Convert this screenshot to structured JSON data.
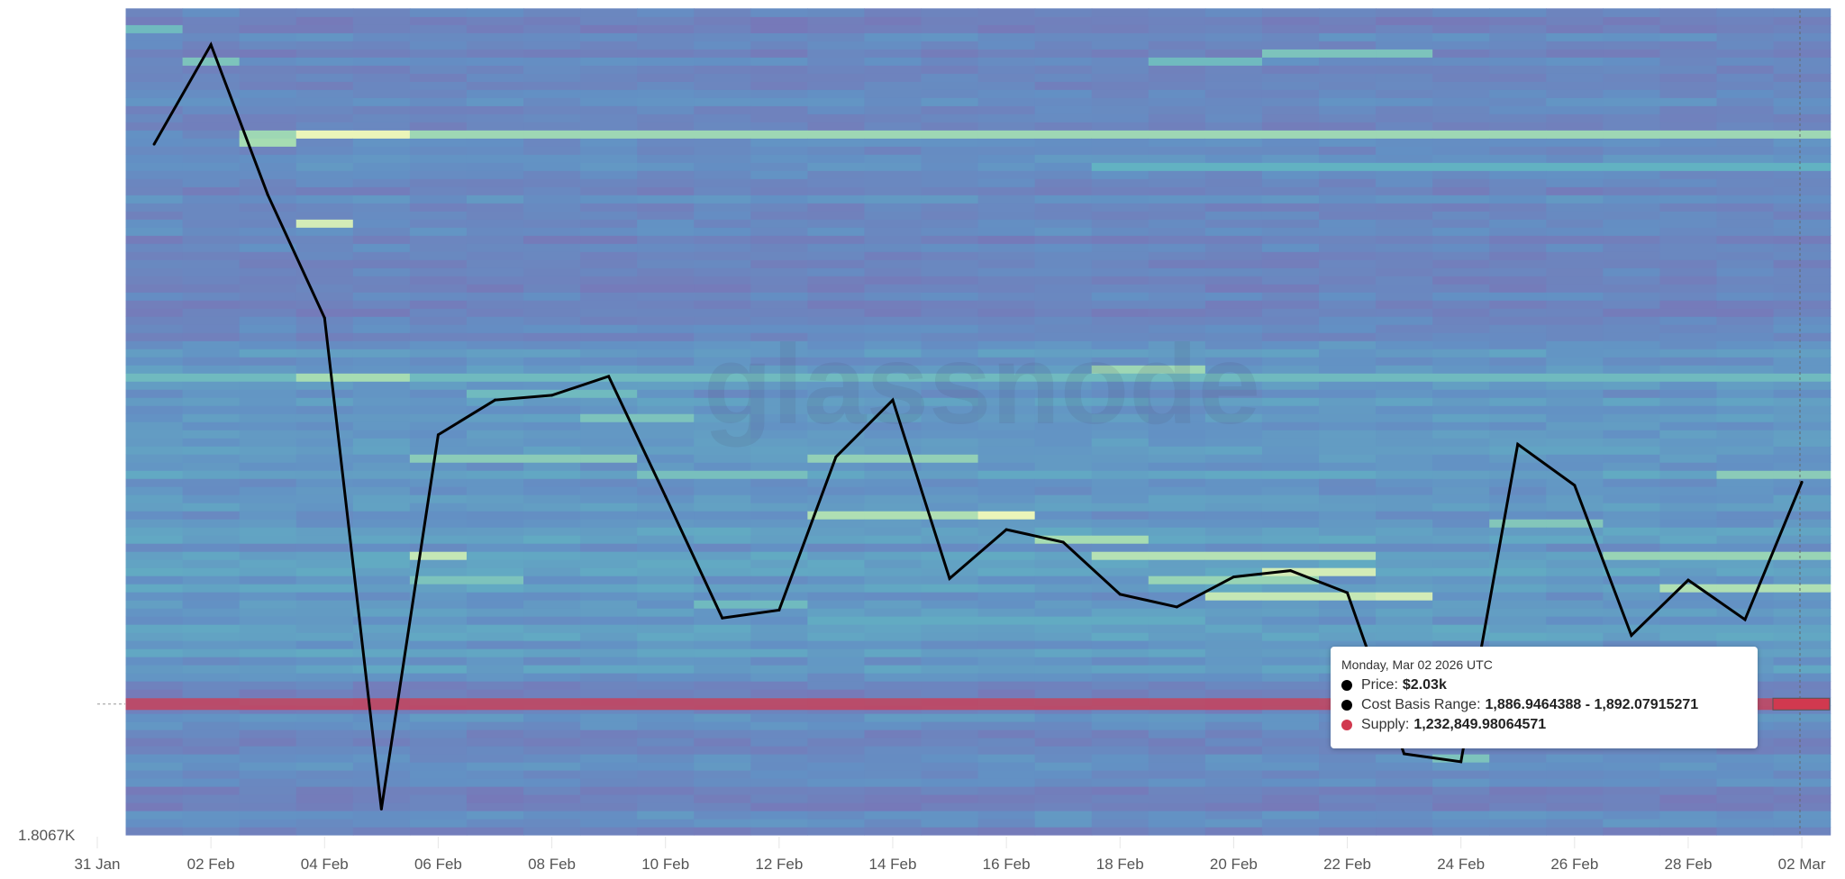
{
  "chart_data": {
    "type": "heatmap",
    "title": "",
    "xlabel": "",
    "ylabel": "",
    "y_min_label": "1.8067K",
    "ylim": [
      1806.7,
      2329
    ],
    "band_size": 5.13,
    "x_ticks": [
      "31 Jan",
      "02 Feb",
      "04 Feb",
      "06 Feb",
      "08 Feb",
      "10 Feb",
      "12 Feb",
      "14 Feb",
      "16 Feb",
      "18 Feb",
      "20 Feb",
      "22 Feb",
      "24 Feb",
      "26 Feb",
      "28 Feb",
      "02 Mar"
    ],
    "x_range": [
      "2026-01-31",
      "2026-03-02"
    ],
    "grid": false,
    "watermark": "glassnode",
    "price_series": {
      "name": "Price",
      "color": "#000000",
      "x": [
        "2026-02-01",
        "2026-02-02",
        "2026-02-03",
        "2026-02-04",
        "2026-02-05",
        "2026-02-06",
        "2026-02-07",
        "2026-02-08",
        "2026-02-09",
        "2026-02-10",
        "2026-02-11",
        "2026-02-12",
        "2026-02-13",
        "2026-02-14",
        "2026-02-15",
        "2026-02-16",
        "2026-02-17",
        "2026-02-18",
        "2026-02-19",
        "2026-02-20",
        "2026-02-21",
        "2026-02-22",
        "2026-02-23",
        "2026-02-24",
        "2026-02-25",
        "2026-02-26",
        "2026-02-27",
        "2026-02-28",
        "2026-03-01",
        "2026-03-02"
      ],
      "values": [
        2244,
        2307,
        2212,
        2134,
        1823,
        2060,
        2082,
        2085,
        2097,
        2021,
        1944,
        1949,
        2046,
        2082,
        1969,
        2000,
        1992,
        1959,
        1951,
        1970,
        1974,
        1960,
        1858,
        1853,
        2054,
        2028,
        1933,
        1968,
        1943,
        2030
      ]
    },
    "highlighted_band": {
      "from": 1886.9464388,
      "to": 1892.07915271,
      "color": "#d1394f"
    },
    "density_colors": [
      "#7b74b6",
      "#6390c4",
      "#62b2c2",
      "#a6dcb2",
      "#f1f7ba"
    ],
    "dense_bands": [
      {
        "price": 2251,
        "from": "2026-02-03",
        "to": "2026-03-02",
        "level": 0.72
      },
      {
        "price": 2251,
        "from": "2026-02-04",
        "to": "2026-02-05",
        "level": 0.98
      },
      {
        "price": 2246,
        "from": "2026-02-03",
        "to": "2026-02-03",
        "level": 0.75
      },
      {
        "price": 2192,
        "from": "2026-02-04",
        "to": "2026-02-04",
        "level": 0.9
      },
      {
        "price": 2301,
        "from": "2026-02-21",
        "to": "2026-02-23",
        "level": 0.6
      },
      {
        "price": 2296,
        "from": "2026-02-19",
        "to": "2026-02-20",
        "level": 0.55
      },
      {
        "price": 2297,
        "from": "2026-02-02",
        "to": "2026-02-02",
        "level": 0.6
      },
      {
        "price": 2318,
        "from": "2026-02-01",
        "to": "2026-02-01",
        "level": 0.55
      },
      {
        "price": 2229,
        "from": "2026-02-18",
        "to": "2026-03-02",
        "level": 0.5
      },
      {
        "price": 2096,
        "from": "2026-02-01",
        "to": "2026-03-02",
        "level": 0.55
      },
      {
        "price": 2096,
        "from": "2026-02-04",
        "to": "2026-02-05",
        "level": 0.75
      },
      {
        "price": 2100,
        "from": "2026-02-18",
        "to": "2026-02-19",
        "level": 0.72
      },
      {
        "price": 2085,
        "from": "2026-02-07",
        "to": "2026-02-09",
        "level": 0.55
      },
      {
        "price": 2070,
        "from": "2026-02-09",
        "to": "2026-02-10",
        "level": 0.6
      },
      {
        "price": 2044,
        "from": "2026-02-06",
        "to": "2026-02-09",
        "level": 0.65
      },
      {
        "price": 2044,
        "from": "2026-02-13",
        "to": "2026-02-15",
        "level": 0.68
      },
      {
        "price": 2037,
        "from": "2026-02-10",
        "to": "2026-02-12",
        "level": 0.58
      },
      {
        "price": 2035,
        "from": "2026-03-01",
        "to": "2026-03-02",
        "level": 0.65
      },
      {
        "price": 2011,
        "from": "2026-02-16",
        "to": "2026-02-16",
        "level": 0.98
      },
      {
        "price": 2011,
        "from": "2026-02-13",
        "to": "2026-02-15",
        "level": 0.78
      },
      {
        "price": 2006,
        "from": "2026-02-25",
        "to": "2026-02-26",
        "level": 0.62
      },
      {
        "price": 1995,
        "from": "2026-02-17",
        "to": "2026-02-18",
        "level": 0.75
      },
      {
        "price": 1984,
        "from": "2026-02-06",
        "to": "2026-02-06",
        "level": 0.85
      },
      {
        "price": 1984,
        "from": "2026-02-18",
        "to": "2026-02-22",
        "level": 0.8
      },
      {
        "price": 1984,
        "from": "2026-02-27",
        "to": "2026-03-02",
        "level": 0.7
      },
      {
        "price": 1972,
        "from": "2026-02-21",
        "to": "2026-02-22",
        "level": 0.9
      },
      {
        "price": 1966,
        "from": "2026-02-19",
        "to": "2026-02-21",
        "level": 0.7
      },
      {
        "price": 1960,
        "from": "2026-02-20",
        "to": "2026-02-22",
        "level": 0.85
      },
      {
        "price": 1956,
        "from": "2026-02-23",
        "to": "2026-02-23",
        "level": 0.9
      },
      {
        "price": 1962,
        "from": "2026-02-28",
        "to": "2026-03-02",
        "level": 0.78
      },
      {
        "price": 1970,
        "from": "2026-02-06",
        "to": "2026-02-07",
        "level": 0.6
      },
      {
        "price": 1952,
        "from": "2026-02-11",
        "to": "2026-02-12",
        "level": 0.55
      },
      {
        "price": 1941,
        "from": "2026-02-13",
        "to": "2026-02-19",
        "level": 0.45
      },
      {
        "price": 1916,
        "from": "2026-02-23",
        "to": "2026-02-24",
        "level": 0.55
      },
      {
        "price": 1853,
        "from": "2026-02-24",
        "to": "2026-02-24",
        "level": 0.6
      }
    ]
  },
  "tooltip": {
    "date": "Monday, Mar 02 2026 UTC",
    "rows": [
      {
        "label": "Price:",
        "value": "$2.03k",
        "color": "#000000"
      },
      {
        "label": "Cost Basis Range:",
        "value": "1,886.9464388 - 1,892.07915271",
        "color": "#000000"
      },
      {
        "label": "Supply:",
        "value": "1,232,849.98064571",
        "color": "#d1394f"
      }
    ]
  }
}
